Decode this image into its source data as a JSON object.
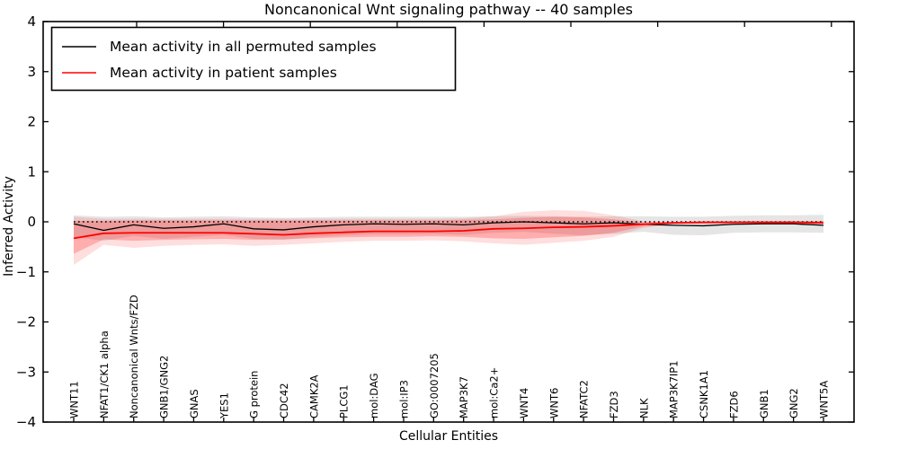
{
  "title": "Noncanonical Wnt signaling pathway -- 40 samples",
  "legend": {
    "items": [
      {
        "label": "Mean activity in all permuted samples",
        "color": "#000000"
      },
      {
        "label": "Mean activity in patient samples",
        "color": "#ff0000"
      }
    ]
  },
  "chart_data": {
    "type": "line",
    "title": "Noncanonical Wnt signaling pathway -- 40 samples",
    "xlabel": "Cellular Entities",
    "ylabel": "Inferred Activity",
    "ylim": [
      -4,
      4
    ],
    "yticks": [
      4,
      3,
      2,
      1,
      0,
      -1,
      -2,
      -3,
      -4
    ],
    "grid": false,
    "legend_position": "upper left",
    "zero_line": {
      "y": 0,
      "style": "dotted",
      "color": "#000000"
    },
    "categories": [
      "WNT11",
      "NFAT1/CK1 alpha",
      "Noncanonical Wnts/FZD",
      "GNB1/GNG2",
      "GNAS",
      "YES1",
      "G protein",
      "CDC42",
      "CAMK2A",
      "PLCG1",
      "mol:DAG",
      "mol:IP3",
      "GO:0007205",
      "MAP3K7",
      "mol:Ca2+",
      "WNT4",
      "WNT6",
      "NFATC2",
      "FZD3",
      "NLK",
      "MAP3K7IP1",
      "CSNK1A1",
      "FZD6",
      "GNB1",
      "GNG2",
      "WNT5A"
    ],
    "series": [
      {
        "name": "Mean activity in all permuted samples",
        "color": "#000000",
        "line_width": 1.3,
        "values": [
          -0.04,
          -0.17,
          -0.06,
          -0.13,
          -0.1,
          -0.04,
          -0.14,
          -0.16,
          -0.1,
          -0.06,
          -0.04,
          -0.05,
          -0.04,
          -0.06,
          -0.02,
          0.0,
          -0.02,
          -0.04,
          -0.02,
          -0.05,
          -0.07,
          -0.08,
          -0.05,
          -0.04,
          -0.04,
          -0.07
        ]
      },
      {
        "name": "Mean activity in patient samples",
        "color": "#ff0000",
        "line_width": 1.8,
        "values": [
          -0.33,
          -0.23,
          -0.22,
          -0.22,
          -0.22,
          -0.22,
          -0.24,
          -0.26,
          -0.23,
          -0.21,
          -0.19,
          -0.19,
          -0.19,
          -0.18,
          -0.14,
          -0.13,
          -0.11,
          -0.1,
          -0.08,
          -0.05,
          -0.02,
          -0.01,
          -0.01,
          -0.01,
          -0.01,
          -0.02
        ]
      }
    ],
    "bands": [
      {
        "name": "permuted-samples-range",
        "fill": "rgba(0,0,0,0.10)",
        "upper": [
          0.13,
          0.1,
          0.11,
          0.09,
          0.1,
          0.11,
          0.09,
          0.08,
          0.09,
          0.1,
          0.1,
          0.1,
          0.1,
          0.1,
          0.11,
          0.12,
          0.11,
          0.1,
          0.11,
          0.11,
          0.1,
          0.1,
          0.12,
          0.13,
          0.13,
          0.14
        ],
        "lower": [
          -0.3,
          -0.38,
          -0.28,
          -0.34,
          -0.3,
          -0.26,
          -0.34,
          -0.36,
          -0.3,
          -0.27,
          -0.25,
          -0.25,
          -0.24,
          -0.26,
          -0.22,
          -0.2,
          -0.24,
          -0.27,
          -0.24,
          -0.2,
          -0.26,
          -0.27,
          -0.22,
          -0.21,
          -0.21,
          -0.22
        ]
      },
      {
        "name": "patient-samples-range-outer",
        "fill": "rgba(255,0,0,0.13)",
        "upper": [
          0.1,
          0.06,
          0.06,
          0.06,
          0.06,
          0.06,
          0.06,
          0.06,
          0.06,
          0.06,
          0.06,
          0.06,
          0.06,
          0.07,
          0.11,
          0.2,
          0.23,
          0.22,
          0.13,
          0.01,
          0.0,
          0.0,
          0.01,
          0.01,
          0.01,
          0.02
        ],
        "lower": [
          -0.86,
          -0.46,
          -0.52,
          -0.48,
          -0.46,
          -0.45,
          -0.48,
          -0.46,
          -0.43,
          -0.4,
          -0.38,
          -0.38,
          -0.37,
          -0.39,
          -0.43,
          -0.46,
          -0.42,
          -0.38,
          -0.3,
          -0.12,
          -0.05,
          -0.04,
          -0.04,
          -0.04,
          -0.04,
          -0.06
        ]
      },
      {
        "name": "patient-samples-range-inner",
        "fill": "rgba(255,0,0,0.22)",
        "upper": [
          0.02,
          0.02,
          0.03,
          0.03,
          0.03,
          0.03,
          0.03,
          0.03,
          0.03,
          0.03,
          0.03,
          0.03,
          0.03,
          0.04,
          0.05,
          0.08,
          0.1,
          0.09,
          0.05,
          -0.01,
          -0.01,
          0.0,
          0.01,
          0.01,
          0.01,
          0.01
        ],
        "lower": [
          -0.64,
          -0.35,
          -0.38,
          -0.36,
          -0.35,
          -0.34,
          -0.36,
          -0.35,
          -0.33,
          -0.31,
          -0.3,
          -0.3,
          -0.29,
          -0.3,
          -0.33,
          -0.34,
          -0.31,
          -0.28,
          -0.22,
          -0.09,
          -0.04,
          -0.03,
          -0.03,
          -0.03,
          -0.03,
          -0.04
        ]
      }
    ]
  }
}
